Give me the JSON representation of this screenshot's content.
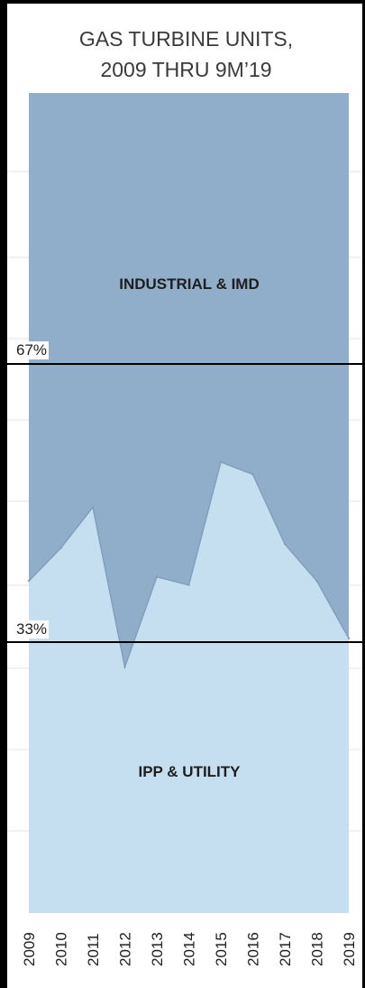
{
  "chart_data": {
    "type": "area",
    "title": [
      "GAS TURBINE UNITS,",
      "2009 THRU 9M’19"
    ],
    "x": [
      "2009",
      "2010",
      "2011",
      "2012",
      "2013",
      "2014",
      "2015",
      "2016",
      "2017",
      "2018",
      "2019"
    ],
    "ylim": [
      0,
      100
    ],
    "series": [
      {
        "name": "IPP & UTILITY",
        "color": "#c6dff0",
        "values": [
          40.5,
          44.5,
          49.5,
          30,
          41,
          40,
          55,
          53.5,
          45,
          40.5,
          33.5
        ]
      },
      {
        "name": "INDUSTRIAL & IMD",
        "color": "#90aec9",
        "values": [
          59.5,
          55.5,
          50.5,
          70,
          59,
          60,
          45,
          46.5,
          55,
          59.5,
          66.5
        ]
      }
    ],
    "reference_lines": [
      {
        "label": "67%",
        "value": 67
      },
      {
        "label": "33%",
        "value": 33
      }
    ],
    "grid": true,
    "legend": "inline"
  }
}
